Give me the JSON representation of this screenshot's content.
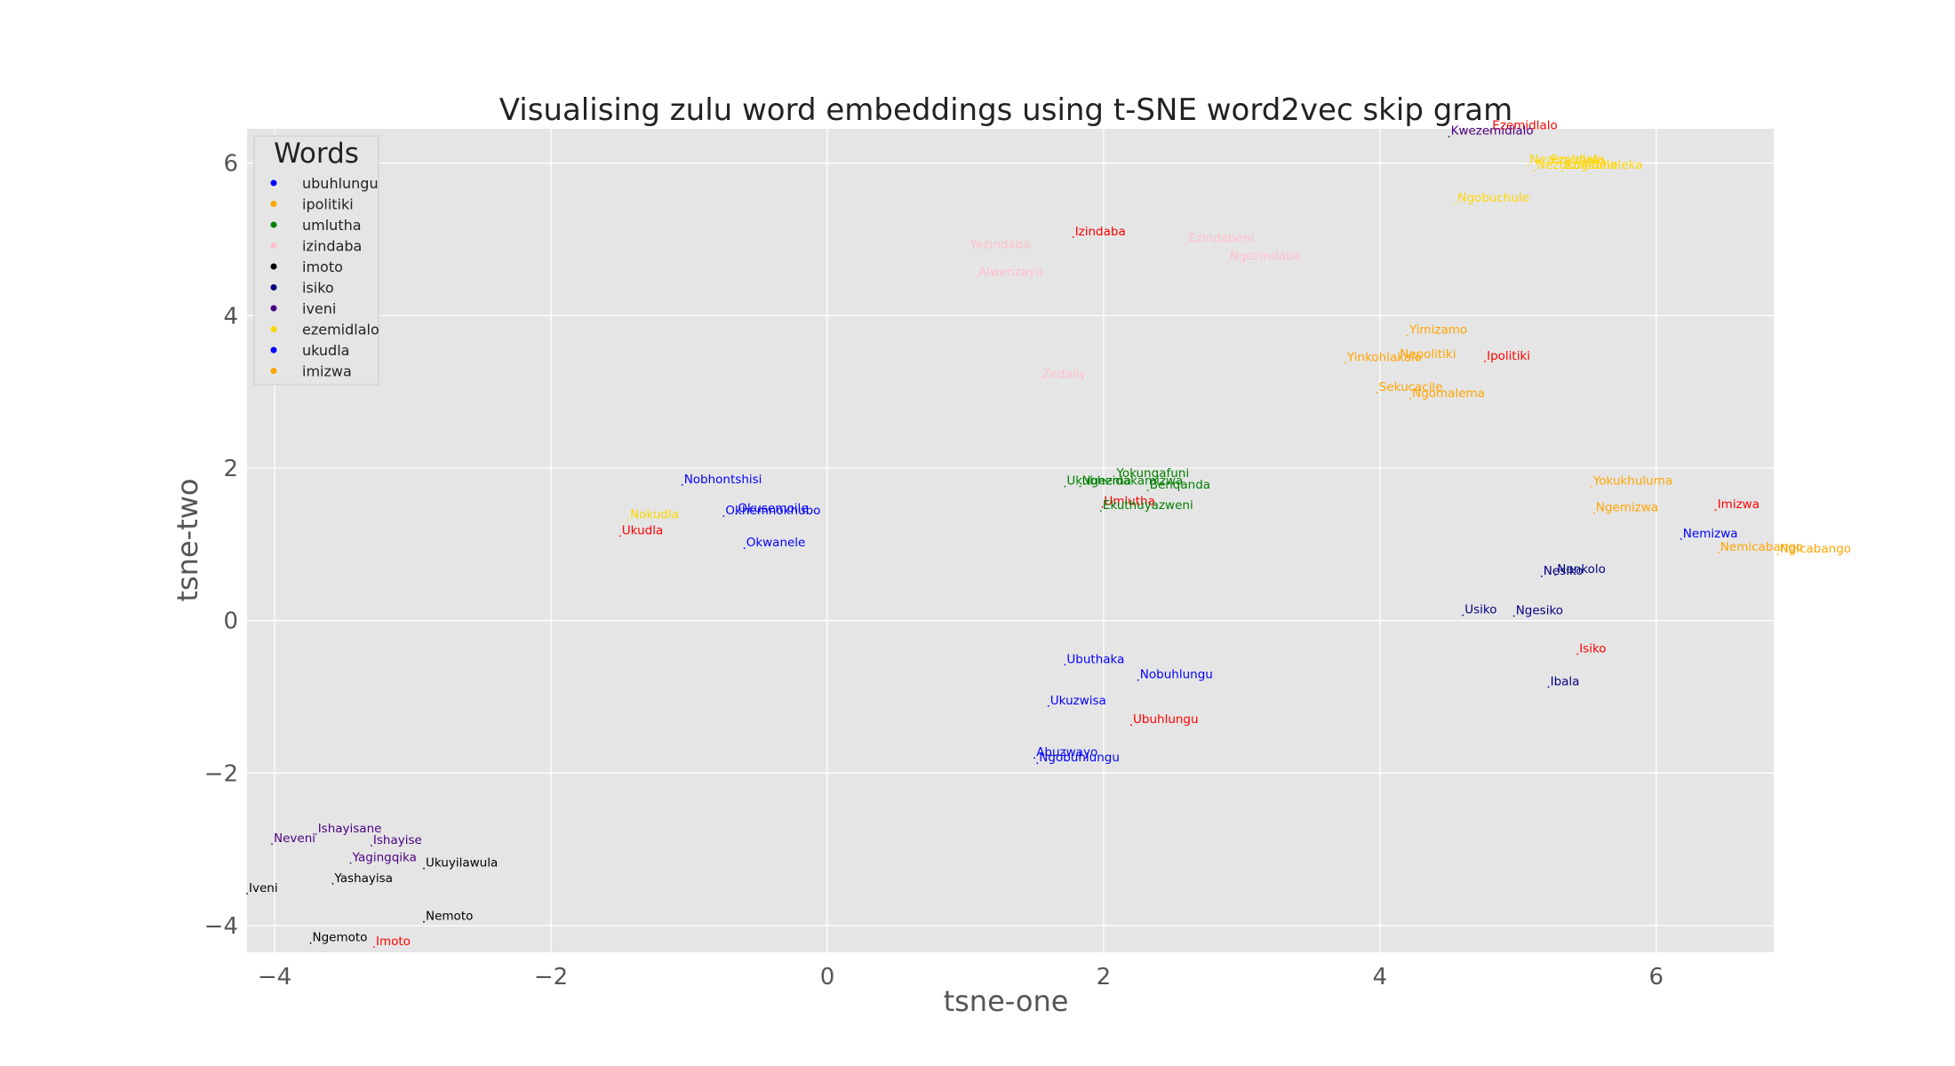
{
  "chart_data": {
    "type": "scatter",
    "title": "Visualising zulu word embeddings using t-SNE word2vec skip gram",
    "xlabel": "tsne-one",
    "ylabel": "tsne-two",
    "xlim": [
      -4.2,
      6.85
    ],
    "ylim": [
      -4.35,
      6.45
    ],
    "xticks": [
      -4,
      -2,
      0,
      2,
      4,
      6
    ],
    "yticks": [
      -4,
      -2,
      0,
      2,
      4,
      6
    ],
    "xtick_labels": [
      "−4",
      "−2",
      "0",
      "2",
      "4",
      "6"
    ],
    "ytick_labels": [
      "−4",
      "−2",
      "0",
      "2",
      "4",
      "6"
    ],
    "grid": true,
    "legend": {
      "title": "Words",
      "placement": "top-left",
      "entries": [
        {
          "name": "ubuhlungu",
          "color": "#0000ff"
        },
        {
          "name": "ipolitiki",
          "color": "#ffa500"
        },
        {
          "name": "umlutha",
          "color": "#008000"
        },
        {
          "name": "izindaba",
          "color": "#ffc0cb"
        },
        {
          "name": "imoto",
          "color": "#000000"
        },
        {
          "name": "isiko",
          "color": "#000080"
        },
        {
          "name": "iveni",
          "color": "#4b0082"
        },
        {
          "name": "ezemidlalo",
          "color": "#ffd700"
        },
        {
          "name": "ukudla",
          "color": "#0000ff"
        },
        {
          "name": "imizwa",
          "color": "#ffa500"
        }
      ]
    },
    "points": [
      {
        "label": "Ezemidlalo",
        "x": 4.8,
        "y": 6.42,
        "color": "#ff0000"
      },
      {
        "label": "Kwezemidlalo",
        "x": 4.5,
        "y": 6.35,
        "color": "#4b0082"
      },
      {
        "label": "Nezemidlalo",
        "x": 5.07,
        "y": 5.97,
        "color": "#ffd700"
      },
      {
        "label": "Ezebhola",
        "x": 5.22,
        "y": 5.97,
        "color": "#ffd700"
      },
      {
        "label": "Nezokugibela",
        "x": 5.12,
        "y": 5.9,
        "color": "#ffd700"
      },
      {
        "label": "Ezikebheleka",
        "x": 5.32,
        "y": 5.9,
        "color": "#ffd700"
      },
      {
        "label": "Ngobuchule",
        "x": 4.55,
        "y": 5.47,
        "color": "#ffd700"
      },
      {
        "label": "Izindaba",
        "x": 1.78,
        "y": 5.03,
        "color": "#ff0000"
      },
      {
        "label": "Ezindabeni",
        "x": 2.6,
        "y": 4.94,
        "color": "#ffc0cb"
      },
      {
        "label": "Yezindaba",
        "x": 1.02,
        "y": 4.86,
        "color": "#ffc0cb"
      },
      {
        "label": "Ngezindaba",
        "x": 2.9,
        "y": 4.71,
        "color": "#ffc0cb"
      },
      {
        "label": "Alwenzayo",
        "x": 1.08,
        "y": 4.5,
        "color": "#ffc0cb"
      },
      {
        "label": "Yimizamo",
        "x": 4.2,
        "y": 3.74,
        "color": "#ffa500"
      },
      {
        "label": "Yinkohlakalo",
        "x": 3.75,
        "y": 3.38,
        "color": "#ffa500"
      },
      {
        "label": "Nepolitiki",
        "x": 4.13,
        "y": 3.42,
        "color": "#ffa500"
      },
      {
        "label": "Ipolitiki",
        "x": 4.76,
        "y": 3.4,
        "color": "#ff0000"
      },
      {
        "label": "Zedaily",
        "x": 1.54,
        "y": 3.16,
        "color": "#ffc0cb"
      },
      {
        "label": "Sekucacile",
        "x": 3.98,
        "y": 2.99,
        "color": "#ffa500"
      },
      {
        "label": "Ngomalema",
        "x": 4.22,
        "y": 2.91,
        "color": "#ffa500"
      },
      {
        "label": "Yokungafuni",
        "x": 2.08,
        "y": 1.86,
        "color": "#008000"
      },
      {
        "label": "Ukubhema",
        "x": 1.72,
        "y": 1.76,
        "color": "#008000"
      },
      {
        "label": "Ngezidakamizwa",
        "x": 1.83,
        "y": 1.76,
        "color": "#008000"
      },
      {
        "label": "Benqanda",
        "x": 2.32,
        "y": 1.71,
        "color": "#008000"
      },
      {
        "label": "Yokukhuluma",
        "x": 5.53,
        "y": 1.76,
        "color": "#ffa500"
      },
      {
        "label": "Nobhontshisi",
        "x": -1.05,
        "y": 1.78,
        "color": "#0000ff"
      },
      {
        "label": "Umlutha",
        "x": 1.99,
        "y": 1.49,
        "color": "#ff0000"
      },
      {
        "label": "Ekuthuyazweni",
        "x": 1.98,
        "y": 1.44,
        "color": "#008000"
      },
      {
        "label": "Imizwa",
        "x": 6.43,
        "y": 1.45,
        "color": "#ff0000"
      },
      {
        "label": "Ngemizwa",
        "x": 5.55,
        "y": 1.41,
        "color": "#ffa500"
      },
      {
        "label": "Okusemoile",
        "x": -0.66,
        "y": 1.4,
        "color": "#0000ff"
      },
      {
        "label": "Okhemnokhubo",
        "x": -0.75,
        "y": 1.37,
        "color": "#0000ff"
      },
      {
        "label": "Nokudla",
        "x": -1.44,
        "y": 1.32,
        "color": "#ffd700"
      },
      {
        "label": "Ukudla",
        "x": -1.5,
        "y": 1.11,
        "color": "#ff0000"
      },
      {
        "label": "Nemizwa",
        "x": 6.18,
        "y": 1.07,
        "color": "#0000ff"
      },
      {
        "label": "Okwanele",
        "x": -0.6,
        "y": 0.95,
        "color": "#0000ff"
      },
      {
        "label": "Nemicabango",
        "x": 6.45,
        "y": 0.89,
        "color": "#ffa500"
      },
      {
        "label": "Ngicabango",
        "x": 6.88,
        "y": 0.87,
        "color": "#ffa500"
      },
      {
        "label": "Nesiko",
        "x": 5.17,
        "y": 0.58,
        "color": "#000080"
      },
      {
        "label": "Nenkolo",
        "x": 5.27,
        "y": 0.6,
        "color": "#000080"
      },
      {
        "label": "Usiko",
        "x": 4.6,
        "y": 0.07,
        "color": "#000080"
      },
      {
        "label": "Ngesiko",
        "x": 4.97,
        "y": 0.06,
        "color": "#000080"
      },
      {
        "label": "Isiko",
        "x": 5.43,
        "y": -0.44,
        "color": "#ff0000"
      },
      {
        "label": "Ubuthaka",
        "x": 1.72,
        "y": -0.58,
        "color": "#0000ff"
      },
      {
        "label": "Nobuhlungu",
        "x": 2.25,
        "y": -0.78,
        "color": "#0000ff"
      },
      {
        "label": "Ibala",
        "x": 5.22,
        "y": -0.87,
        "color": "#000080"
      },
      {
        "label": "Ukuzwisa",
        "x": 1.6,
        "y": -1.12,
        "color": "#0000ff"
      },
      {
        "label": "Ubuhlungu",
        "x": 2.2,
        "y": -1.37,
        "color": "#ff0000"
      },
      {
        "label": "Abuzwayo",
        "x": 1.5,
        "y": -1.8,
        "color": "#0000ff"
      },
      {
        "label": "Ngobuhlungu",
        "x": 1.52,
        "y": -1.87,
        "color": "#0000ff"
      },
      {
        "label": "Ishayisane",
        "x": -3.7,
        "y": -2.8,
        "color": "#4b0082"
      },
      {
        "label": "Neveni",
        "x": -4.02,
        "y": -2.93,
        "color": "#4b0082"
      },
      {
        "label": "Ishayise",
        "x": -3.3,
        "y": -2.95,
        "color": "#4b0082"
      },
      {
        "label": "Yagingqika",
        "x": -3.45,
        "y": -3.18,
        "color": "#4b0082"
      },
      {
        "label": "Ukuyilawula",
        "x": -2.92,
        "y": -3.25,
        "color": "#000000"
      },
      {
        "label": "Yashayisa",
        "x": -3.58,
        "y": -3.45,
        "color": "#000000"
      },
      {
        "label": "Iveni",
        "x": -4.2,
        "y": -3.58,
        "color": "#000000"
      },
      {
        "label": "Nemoto",
        "x": -2.92,
        "y": -3.95,
        "color": "#000000"
      },
      {
        "label": "Ngemoto",
        "x": -3.74,
        "y": -4.23,
        "color": "#000000"
      },
      {
        "label": "Imoto",
        "x": -3.28,
        "y": -4.28,
        "color": "#ff0000"
      }
    ]
  }
}
